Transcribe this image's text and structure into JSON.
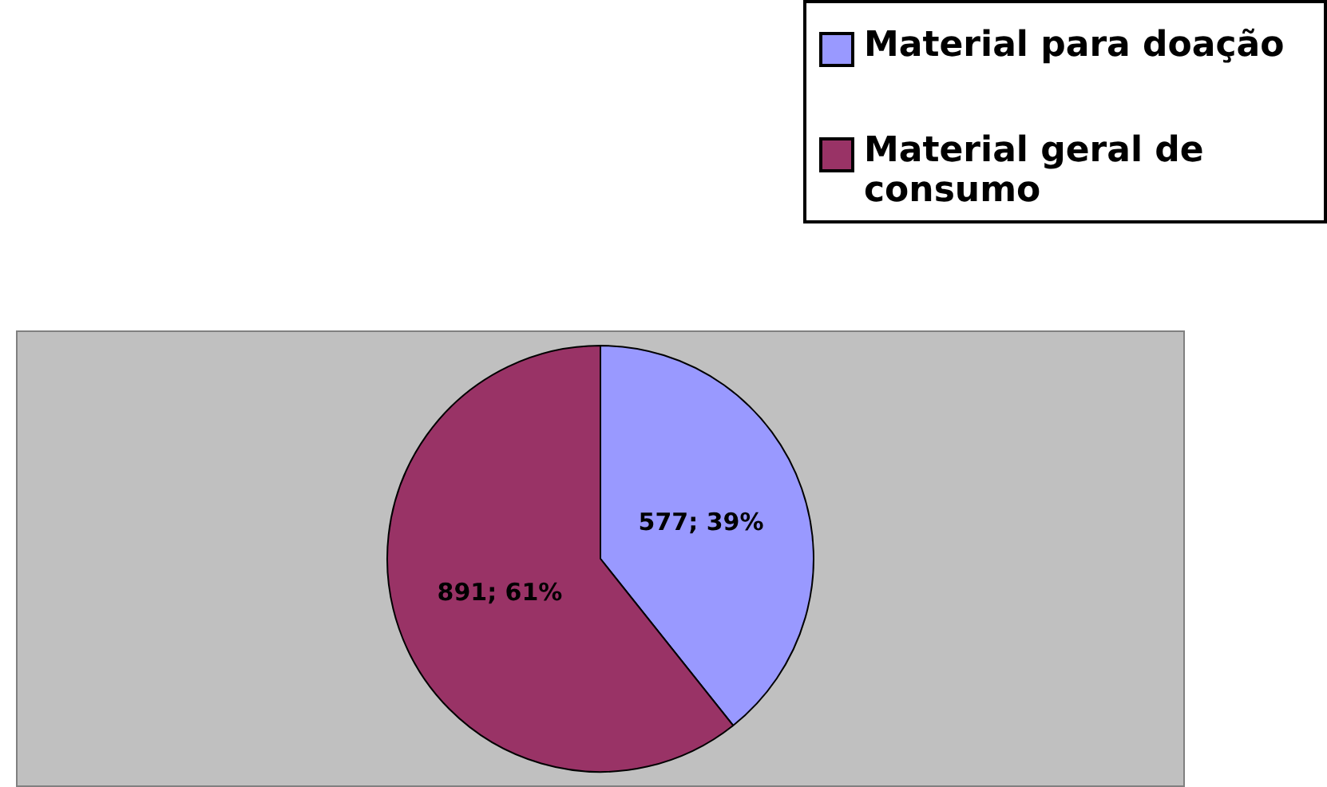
{
  "chart_data": {
    "type": "pie",
    "categories": [
      "Material para doação",
      "Material geral de consumo"
    ],
    "values": [
      577,
      891
    ],
    "colors": [
      "#9999ff",
      "#993366"
    ],
    "value_labels": [
      "577; 39%",
      "891; 61%"
    ],
    "legend": "top right"
  }
}
